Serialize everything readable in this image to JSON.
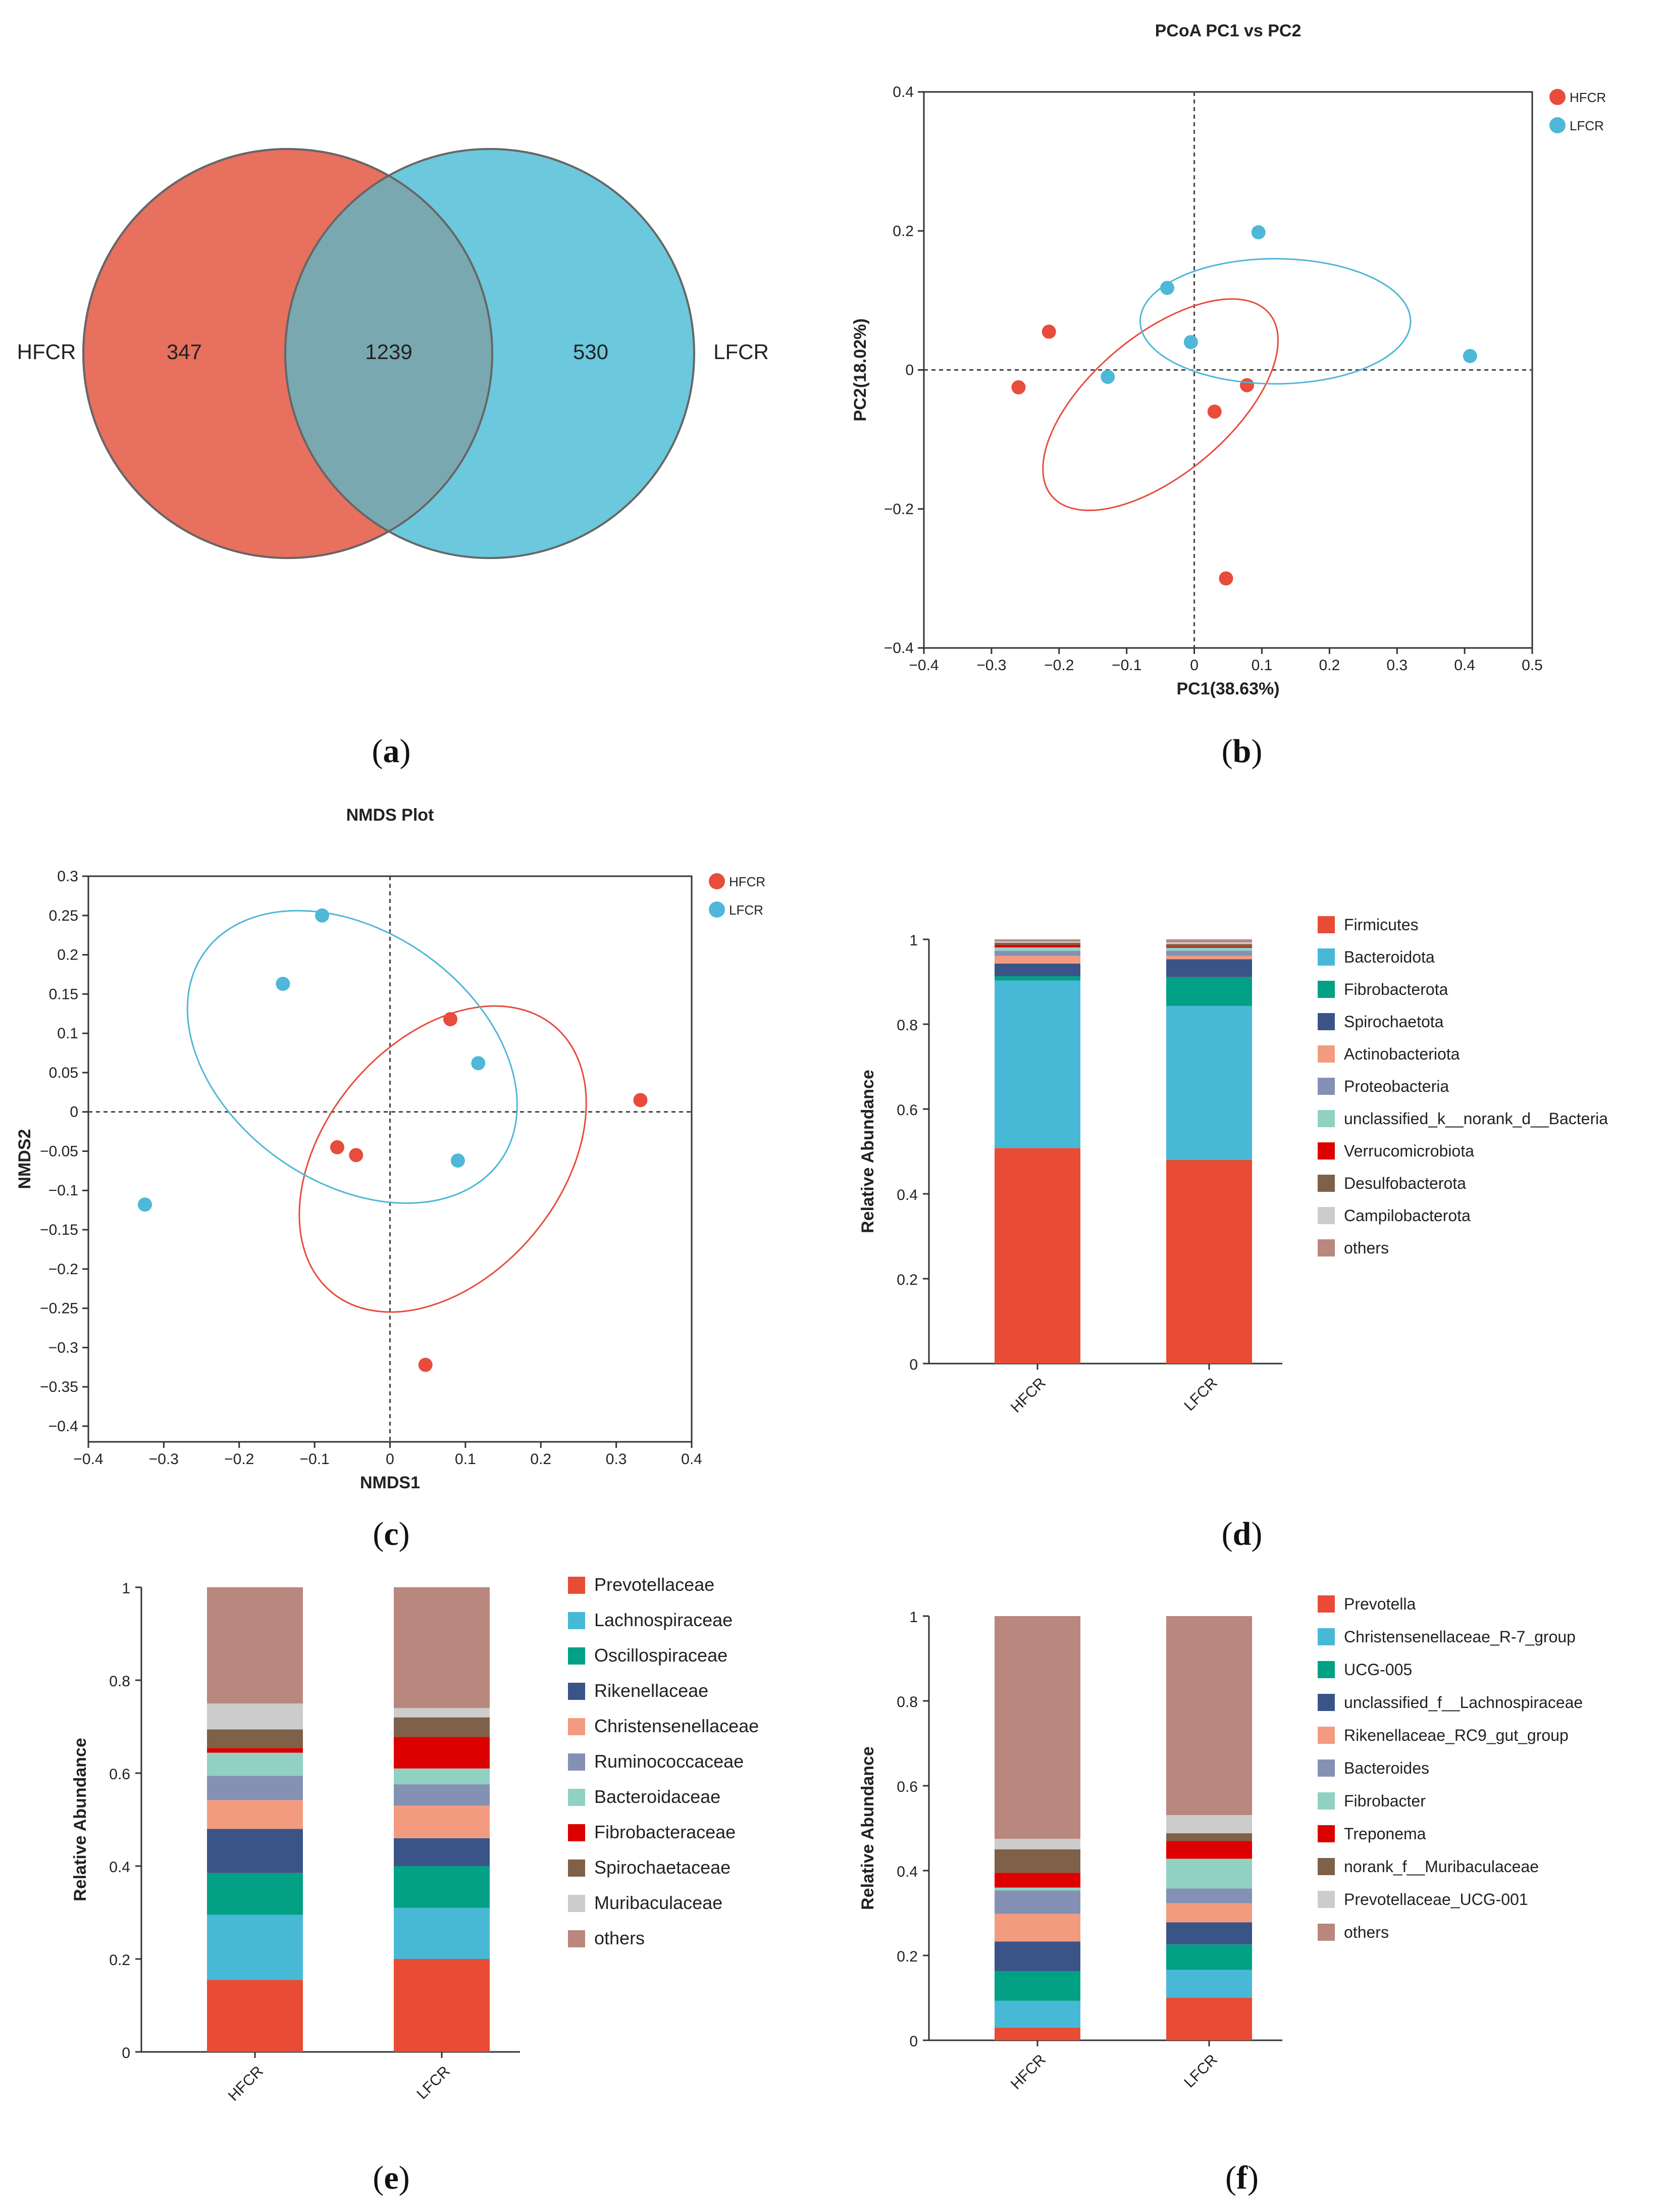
{
  "captions": {
    "a": "a",
    "b": "b",
    "c": "c",
    "d": "d",
    "e": "e",
    "f": "f"
  },
  "chart_data": [
    {
      "id": "a",
      "type": "venn",
      "sets": [
        {
          "name": "HFCR",
          "unique": "347",
          "color": "#e8705f"
        },
        {
          "name": "LFCR",
          "unique": "530",
          "color": "#6cc8dc"
        }
      ],
      "intersection": "1239",
      "overlap_color": "#7aa8b0"
    },
    {
      "id": "b",
      "type": "scatter",
      "title": "PCoA PC1 vs PC2",
      "xlabel": "PC1(38.63%)",
      "ylabel": "PC2(18.02%)",
      "xlim": [
        -0.4,
        0.5
      ],
      "ylim": [
        -0.4,
        0.4
      ],
      "xticks": [
        "−0.4",
        "−0.3",
        "−0.2",
        "−0.1",
        "0",
        "0.1",
        "0.2",
        "0.3",
        "0.4",
        "0.5"
      ],
      "yticks": [
        "−0.4",
        "−0.2",
        "0",
        "0.2",
        "0.4"
      ],
      "legend_position": "top-right",
      "series": [
        {
          "name": "HFCR",
          "color": "#e74c3c",
          "points": [
            [
              -0.215,
              0.055
            ],
            [
              -0.26,
              -0.025
            ],
            [
              0.03,
              -0.06
            ],
            [
              0.078,
              -0.022
            ],
            [
              0.047,
              -0.3
            ]
          ],
          "ellipse": {
            "cx": -0.05,
            "cy": -0.05,
            "rx": 0.21,
            "ry": 0.1,
            "angle_deg": 40
          }
        },
        {
          "name": "LFCR",
          "color": "#4fb7d8",
          "points": [
            [
              0.095,
              0.198
            ],
            [
              -0.04,
              0.118
            ],
            [
              -0.005,
              0.04
            ],
            [
              -0.128,
              -0.01
            ],
            [
              0.408,
              0.02
            ]
          ],
          "ellipse": {
            "cx": 0.12,
            "cy": 0.07,
            "rx": 0.2,
            "ry": 0.09,
            "angle_deg": 0
          }
        }
      ]
    },
    {
      "id": "c",
      "type": "scatter",
      "title": "NMDS Plot",
      "xlabel": "NMDS1",
      "ylabel": "NMDS2",
      "xlim": [
        -0.4,
        0.4
      ],
      "ylim": [
        -0.42,
        0.3
      ],
      "xticks": [
        "−0.4",
        "−0.3",
        "−0.2",
        "−0.1",
        "0",
        "0.1",
        "0.2",
        "0.3",
        "0.4"
      ],
      "yticks": [
        "−0.4",
        "−0.35",
        "−0.3",
        "−0.25",
        "−0.2",
        "−0.15",
        "−0.1",
        "−0.05",
        "0",
        "0.05",
        "0.1",
        "0.15",
        "0.2",
        "0.25",
        "0.3"
      ],
      "legend_position": "top-right",
      "series": [
        {
          "name": "HFCR",
          "color": "#e74c3c",
          "points": [
            [
              0.08,
              0.118
            ],
            [
              0.332,
              0.015
            ],
            [
              -0.07,
              -0.045
            ],
            [
              -0.045,
              -0.055
            ],
            [
              0.047,
              -0.322
            ]
          ],
          "ellipse": {
            "cx": 0.07,
            "cy": -0.06,
            "rx": 0.23,
            "ry": 0.15,
            "angle_deg": 50
          }
        },
        {
          "name": "LFCR",
          "color": "#4fb7d8",
          "points": [
            [
              -0.09,
              0.25
            ],
            [
              -0.142,
              0.163
            ],
            [
              0.117,
              0.062
            ],
            [
              0.09,
              -0.062
            ],
            [
              -0.325,
              -0.118
            ]
          ],
          "ellipse": {
            "cx": -0.05,
            "cy": 0.07,
            "rx": 0.24,
            "ry": 0.16,
            "angle_deg": 145
          }
        }
      ]
    },
    {
      "id": "d",
      "type": "bar",
      "stacked": true,
      "ylabel": "Relative Abundance",
      "ylim": [
        0,
        1
      ],
      "yticks": [
        "0",
        "0.2",
        "0.4",
        "0.6",
        "0.8",
        "1"
      ],
      "categories": [
        "HFCR",
        "LFCR"
      ],
      "legend_position": "right",
      "series": [
        {
          "name": "Firmicutes",
          "color": "#e84c35",
          "values": [
            0.508,
            0.48
          ]
        },
        {
          "name": "Bacteroidota",
          "color": "#47b9d6",
          "values": [
            0.395,
            0.363
          ]
        },
        {
          "name": "Fibrobacterota",
          "color": "#02a084",
          "values": [
            0.01,
            0.068
          ]
        },
        {
          "name": "Spirochaetota",
          "color": "#3b5488",
          "values": [
            0.03,
            0.042
          ]
        },
        {
          "name": "Actinobacteriota",
          "color": "#f39b7f",
          "values": [
            0.018,
            0.008
          ]
        },
        {
          "name": "Proteobacteria",
          "color": "#8491b4",
          "values": [
            0.012,
            0.012
          ]
        },
        {
          "name": "unclassified_k__norank_d__Bacteria",
          "color": "#91d1c2",
          "values": [
            0.008,
            0.007
          ]
        },
        {
          "name": "Verrucomicrobiota",
          "color": "#dc0000",
          "values": [
            0.006,
            0.003
          ]
        },
        {
          "name": "Desulfobacterota",
          "color": "#7e6148",
          "values": [
            0.005,
            0.006
          ]
        },
        {
          "name": "Campilobacterota",
          "color": "#cccccc",
          "values": [
            0.003,
            0.004
          ]
        },
        {
          "name": "others",
          "color": "#b9877e",
          "values": [
            0.005,
            0.007
          ]
        }
      ]
    },
    {
      "id": "e",
      "type": "bar",
      "stacked": true,
      "ylabel": "Relative Abundance",
      "ylim": [
        0,
        1
      ],
      "yticks": [
        "0",
        "0.2",
        "0.4",
        "0.6",
        "0.8",
        "1"
      ],
      "categories": [
        "HFCR",
        "LFCR"
      ],
      "legend_position": "right",
      "series": [
        {
          "name": "Prevotellaceae",
          "color": "#e84c35",
          "values": [
            0.155,
            0.2
          ]
        },
        {
          "name": "Lachnospiraceae",
          "color": "#47b9d6",
          "values": [
            0.14,
            0.11
          ]
        },
        {
          "name": "Oscillospiraceae",
          "color": "#02a084",
          "values": [
            0.09,
            0.09
          ]
        },
        {
          "name": "Rikenellaceae",
          "color": "#3b5488",
          "values": [
            0.095,
            0.06
          ]
        },
        {
          "name": "Christensenellaceae",
          "color": "#f39b7f",
          "values": [
            0.062,
            0.07
          ]
        },
        {
          "name": "Ruminococcaceae",
          "color": "#8491b4",
          "values": [
            0.052,
            0.046
          ]
        },
        {
          "name": "Bacteroidaceae",
          "color": "#91d1c2",
          "values": [
            0.05,
            0.034
          ]
        },
        {
          "name": "Fibrobacteraceae",
          "color": "#dc0000",
          "values": [
            0.01,
            0.068
          ]
        },
        {
          "name": "Spirochaetaceae",
          "color": "#7e6148",
          "values": [
            0.04,
            0.042
          ]
        },
        {
          "name": "Muribaculaceae",
          "color": "#cccccc",
          "values": [
            0.056,
            0.02
          ]
        },
        {
          "name": "others",
          "color": "#b9877e",
          "values": [
            0.25,
            0.26
          ]
        }
      ]
    },
    {
      "id": "f",
      "type": "bar",
      "stacked": true,
      "ylabel": "Relative Abundance",
      "ylim": [
        0,
        1
      ],
      "yticks": [
        "0",
        "0.2",
        "0.4",
        "0.6",
        "0.8",
        "1"
      ],
      "categories": [
        "HFCR",
        "LFCR"
      ],
      "legend_position": "right",
      "series": [
        {
          "name": "Prevotella",
          "color": "#e84c35",
          "values": [
            0.03,
            0.1
          ]
        },
        {
          "name": "Christensenellaceae_R-7_group",
          "color": "#47b9d6",
          "values": [
            0.063,
            0.066
          ]
        },
        {
          "name": "UCG-005",
          "color": "#02a084",
          "values": [
            0.07,
            0.06
          ]
        },
        {
          "name": "unclassified_f__Lachnospiraceae",
          "color": "#3b5488",
          "values": [
            0.07,
            0.052
          ]
        },
        {
          "name": "Rikenellaceae_RC9_gut_group",
          "color": "#f39b7f",
          "values": [
            0.065,
            0.045
          ]
        },
        {
          "name": "Bacteroides",
          "color": "#8491b4",
          "values": [
            0.055,
            0.035
          ]
        },
        {
          "name": "Fibrobacter",
          "color": "#91d1c2",
          "values": [
            0.007,
            0.07
          ]
        },
        {
          "name": "Treponema",
          "color": "#dc0000",
          "values": [
            0.035,
            0.042
          ]
        },
        {
          "name": "norank_f__Muribaculaceae",
          "color": "#7e6148",
          "values": [
            0.055,
            0.018
          ]
        },
        {
          "name": "Prevotellaceae_UCG-001",
          "color": "#cccccc",
          "values": [
            0.025,
            0.043
          ]
        },
        {
          "name": "others",
          "color": "#b9877e",
          "values": [
            0.525,
            0.469
          ]
        }
      ]
    }
  ]
}
